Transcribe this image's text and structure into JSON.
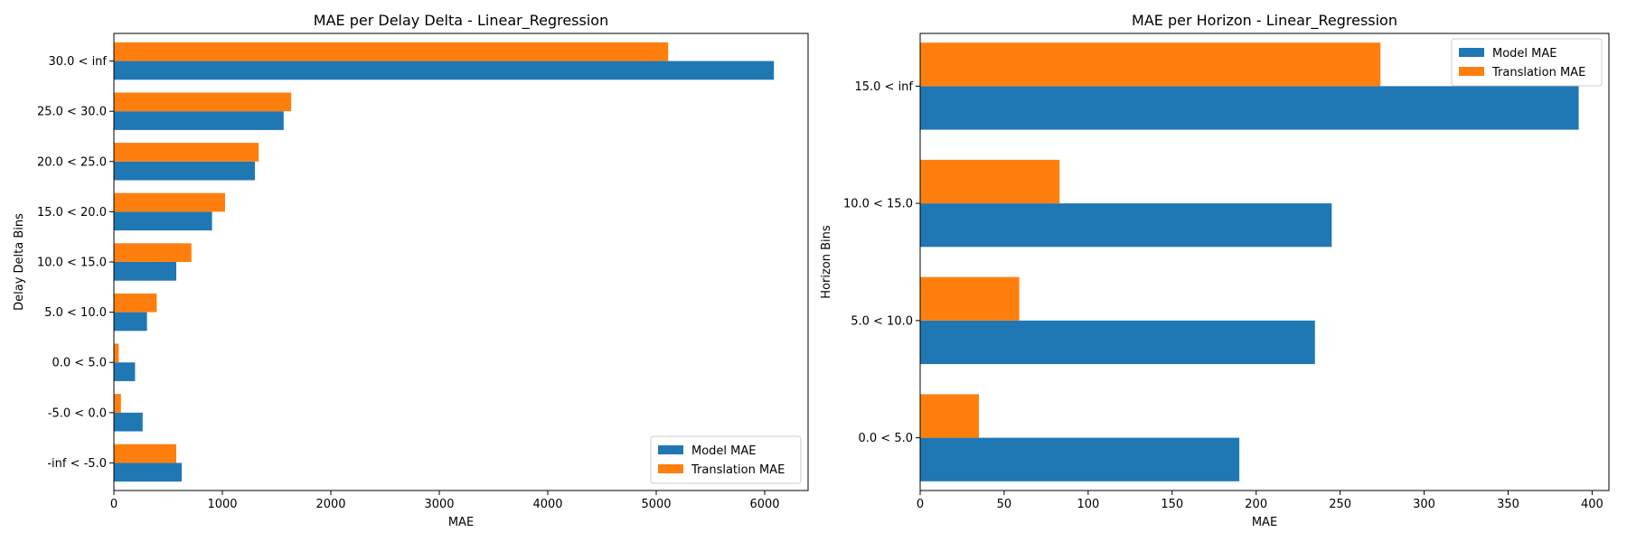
{
  "chart_data": [
    {
      "type": "bar",
      "orientation": "horizontal",
      "title": "MAE per Delay Delta - Linear_Regression",
      "xlabel": "MAE",
      "ylabel": "Delay Delta Bins",
      "xlim": [
        0,
        6400
      ],
      "xticks": [
        0,
        1000,
        2000,
        3000,
        4000,
        5000,
        6000
      ],
      "categories": [
        "-inf < -5.0",
        "-5.0 < 0.0",
        "0.0 < 5.0",
        "5.0 < 10.0",
        "10.0 < 15.0",
        "15.0 < 20.0",
        "20.0 < 25.0",
        "25.0 < 30.0",
        "30.0 < inf"
      ],
      "series": [
        {
          "name": "Model MAE",
          "color": "#1f77b4",
          "values": [
            625,
            265,
            195,
            305,
            575,
            905,
            1300,
            1565,
            6085
          ]
        },
        {
          "name": "Translation MAE",
          "color": "#ff7f0e",
          "values": [
            575,
            65,
            45,
            395,
            715,
            1025,
            1335,
            1635,
            5110
          ]
        }
      ],
      "legend": "lower-right",
      "grid": false
    },
    {
      "type": "bar",
      "orientation": "horizontal",
      "title": "MAE per Horizon - Linear_Regression",
      "xlabel": "MAE",
      "ylabel": "Horizon Bins",
      "xlim": [
        0,
        410
      ],
      "xticks": [
        0,
        50,
        100,
        150,
        200,
        250,
        300,
        350,
        400
      ],
      "categories": [
        "0.0 < 5.0",
        "5.0 < 10.0",
        "10.0 < 15.0",
        "15.0 < inf"
      ],
      "series": [
        {
          "name": "Model MAE",
          "color": "#1f77b4",
          "values": [
            190,
            235,
            245,
            392
          ]
        },
        {
          "name": "Translation MAE",
          "color": "#ff7f0e",
          "values": [
            35,
            59,
            83,
            274
          ]
        }
      ],
      "legend": "upper-right",
      "grid": false
    }
  ]
}
